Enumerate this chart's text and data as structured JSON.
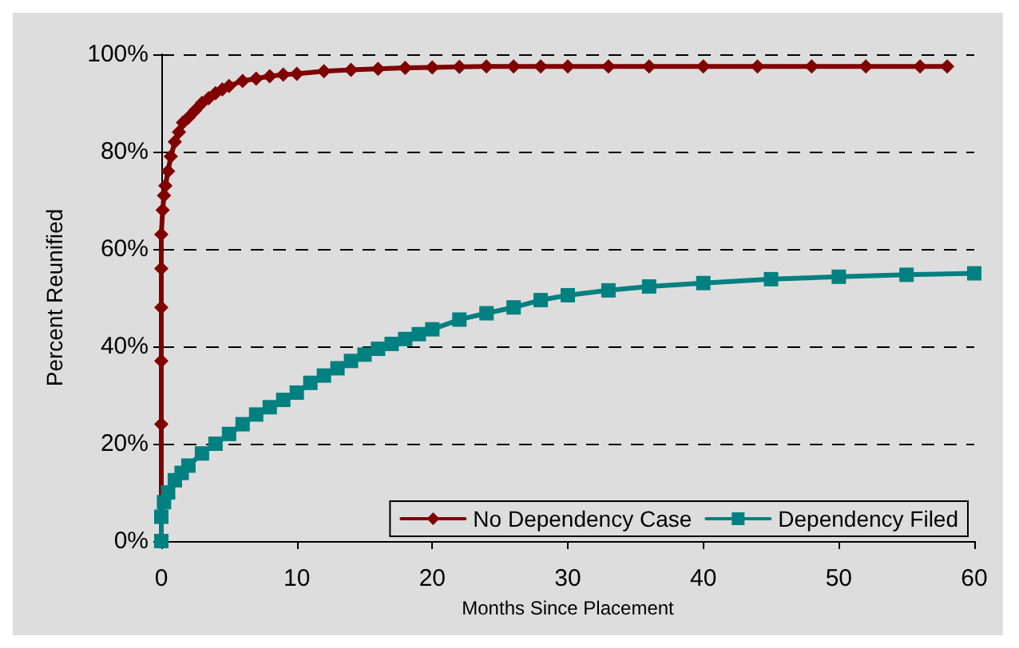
{
  "chart_data": {
    "type": "line",
    "xlabel": "Months Since Placement",
    "ylabel": "Percent Reunified",
    "xlim": [
      0,
      60
    ],
    "xticks": [
      0,
      10,
      20,
      30,
      40,
      50,
      60
    ],
    "ylim": [
      0,
      100
    ],
    "yticks": [
      {
        "value": 0,
        "label": "0%"
      },
      {
        "value": 20,
        "label": "20%"
      },
      {
        "value": 40,
        "label": "40%"
      },
      {
        "value": 60,
        "label": "60%"
      },
      {
        "value": 80,
        "label": "80%"
      },
      {
        "value": 100,
        "label": "100%"
      }
    ],
    "grid": "y",
    "legend": "bottom right",
    "series": [
      {
        "name": "No Dependency Case",
        "color": "#800000",
        "marker": "diamond",
        "x": [
          0,
          0,
          0,
          0,
          0,
          0,
          0.1,
          0.2,
          0.3,
          0.5,
          0.7,
          1,
          1.3,
          1.6,
          2,
          2.5,
          3,
          3.5,
          4,
          4.5,
          5,
          6,
          7,
          8,
          9,
          10,
          12,
          14,
          16,
          18,
          20,
          22,
          24,
          26,
          28,
          30,
          33,
          36,
          40,
          44,
          48,
          52,
          56,
          58
        ],
        "values": [
          0,
          24,
          37,
          48,
          56,
          63,
          68,
          71,
          73,
          76,
          79,
          82,
          84,
          86,
          87,
          88.5,
          90,
          91,
          92,
          92.8,
          93.5,
          94.5,
          95,
          95.5,
          95.8,
          96,
          96.5,
          96.8,
          97,
          97.2,
          97.3,
          97.4,
          97.5,
          97.5,
          97.5,
          97.5,
          97.5,
          97.5,
          97.5,
          97.5,
          97.5,
          97.5,
          97.5,
          97.5
        ]
      },
      {
        "name": "Dependency Filed",
        "color": "#008080",
        "marker": "square",
        "x": [
          0,
          0,
          0.2,
          0.5,
          1,
          1.5,
          2,
          3,
          4,
          5,
          6,
          7,
          8,
          9,
          10,
          11,
          12,
          13,
          14,
          15,
          16,
          17,
          18,
          19,
          20,
          22,
          24,
          26,
          28,
          30,
          33,
          36,
          40,
          45,
          50,
          55,
          60
        ],
        "values": [
          0,
          5,
          8,
          10,
          12.5,
          14,
          15.5,
          18,
          20,
          22,
          24,
          26,
          27.5,
          29,
          30.5,
          32.5,
          34,
          35.5,
          37,
          38.3,
          39.5,
          40.5,
          41.5,
          42.5,
          43.5,
          45.5,
          46.8,
          48,
          49.5,
          50.5,
          51.5,
          52.3,
          53,
          53.8,
          54.3,
          54.7,
          55
        ]
      }
    ]
  }
}
